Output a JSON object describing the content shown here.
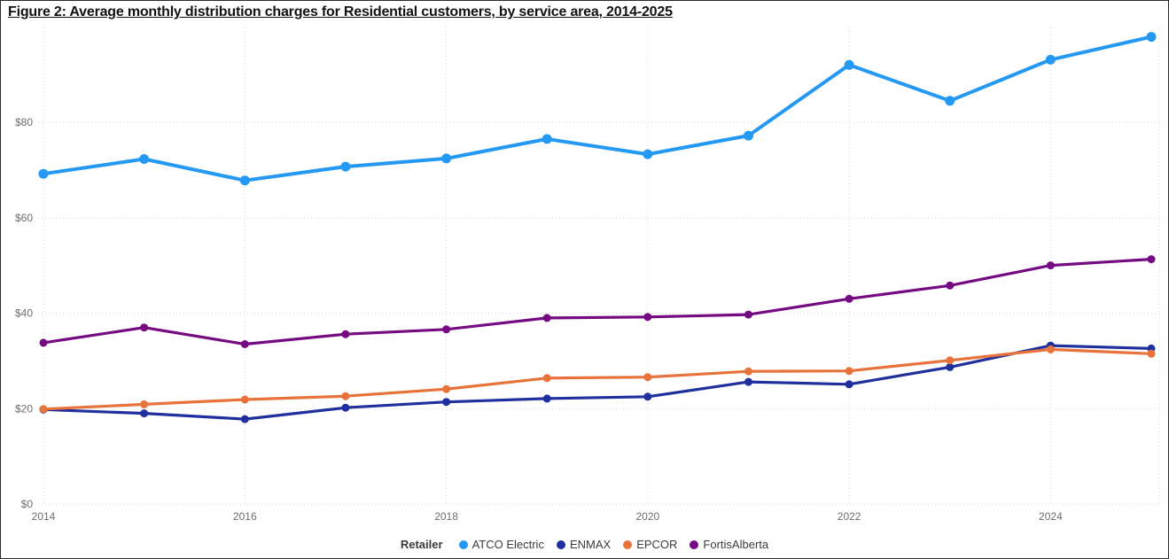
{
  "title": "Figure 2: Average monthly distribution charges for Residential customers, by service area, 2014-2025",
  "legend": {
    "title": "Retailer",
    "items": [
      {
        "label": "ATCO Electric",
        "color": "#2499F4"
      },
      {
        "label": "ENMAX",
        "color": "#1F2F9E"
      },
      {
        "label": "EPCOR",
        "color": "#E8733A"
      },
      {
        "label": "FortisAlberta",
        "color": "#750A82"
      }
    ]
  },
  "chart_data": {
    "type": "line",
    "title": "Figure 2: Average monthly distribution charges for Residential customers, by service area, 2014-2025",
    "xlabel": "",
    "ylabel": "",
    "x": [
      2014,
      2015,
      2016,
      2017,
      2018,
      2019,
      2020,
      2021,
      2022,
      2023,
      2024,
      2025
    ],
    "x_ticks_shown": [
      2014,
      2016,
      2018,
      2020,
      2022,
      2024
    ],
    "y_ticks": [
      {
        "label": "$0",
        "value": 0
      },
      {
        "label": "$20",
        "value": 20
      },
      {
        "label": "$40",
        "value": 40
      },
      {
        "label": "$60",
        "value": 60
      },
      {
        "label": "$80",
        "value": 80
      }
    ],
    "ylim": [
      0,
      100
    ],
    "grid": "dotted",
    "legend_position": "bottom-center",
    "series": [
      {
        "name": "ATCO Electric",
        "color": "#2499F4",
        "line_width": 4,
        "marker_radius": 5.5,
        "values": [
          69.2,
          72.3,
          67.8,
          70.7,
          72.4,
          76.5,
          73.3,
          77.2,
          92.0,
          84.5,
          93.1,
          97.9
        ]
      },
      {
        "name": "ENMAX",
        "color": "#1F2F9E",
        "line_width": 3.2,
        "marker_radius": 4.5,
        "values": [
          19.8,
          19.0,
          17.8,
          20.2,
          21.4,
          22.1,
          22.5,
          25.6,
          25.1,
          28.7,
          33.2,
          32.6
        ]
      },
      {
        "name": "EPCOR",
        "color": "#E8733A",
        "line_width": 3.2,
        "marker_radius": 4.5,
        "values": [
          19.9,
          20.9,
          21.9,
          22.6,
          24.1,
          26.4,
          26.6,
          27.8,
          27.9,
          30.1,
          32.4,
          31.5
        ]
      },
      {
        "name": "FortisAlberta",
        "color": "#750A82",
        "line_width": 3.2,
        "marker_radius": 4.5,
        "values": [
          33.8,
          37.0,
          33.5,
          35.6,
          36.6,
          39.0,
          39.2,
          39.7,
          43.0,
          45.8,
          50.0,
          51.3
        ]
      }
    ],
    "colors": {
      "gridline": "#D9D9D9",
      "axis_text": "#6E6E6E",
      "background": "#FFFFFF",
      "border": "#2B2B2B"
    }
  }
}
